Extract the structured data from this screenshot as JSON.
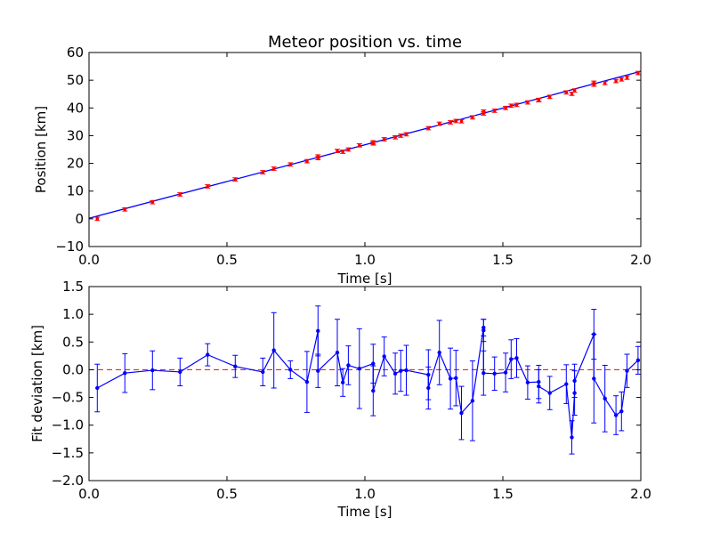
{
  "chart_data": [
    {
      "type": "scatter",
      "title": "Meteor position vs. time",
      "xlabel": "Time [s]",
      "ylabel": "Position [km]",
      "xlim": [
        0.0,
        2.0
      ],
      "ylim": [
        -10,
        60
      ],
      "xticks": [
        "0.0",
        "0.5",
        "1.0",
        "1.5",
        "2.0"
      ],
      "yticks": [
        "−10",
        "0",
        "10",
        "20",
        "30",
        "40",
        "50",
        "60"
      ],
      "grid": false,
      "colors": {
        "data": "#ff0000",
        "fit": "#0000ff"
      },
      "fit_line": {
        "x": [
          0.0,
          2.0
        ],
        "y": [
          0.2,
          53.2
        ]
      },
      "series": [
        {
          "x": [
            0.03,
            0.13,
            0.23,
            0.33,
            0.43,
            0.53,
            0.63,
            0.67,
            0.73,
            0.79,
            0.83,
            0.83,
            0.9,
            0.92,
            0.94,
            0.98,
            1.03,
            1.03,
            1.07,
            1.11,
            1.13,
            1.15,
            1.23,
            1.27,
            1.31,
            1.33,
            1.35,
            1.39,
            1.43,
            1.43,
            1.47,
            1.51,
            1.53,
            1.55,
            1.59,
            1.63,
            1.63,
            1.67,
            1.73,
            1.75,
            1.76,
            1.83,
            1.83,
            1.87,
            1.91,
            1.93,
            1.95,
            1.99
          ],
          "y": [
            0.0,
            3.4,
            6.0,
            8.8,
            11.7,
            14.2,
            16.8,
            18.1,
            19.6,
            20.8,
            22.5,
            21.9,
            24.5,
            24.2,
            25.0,
            26.5,
            27.2,
            27.6,
            28.7,
            29.4,
            30.0,
            30.5,
            32.7,
            34.3,
            34.8,
            35.3,
            35.2,
            36.6,
            38.7,
            38.0,
            39.0,
            40.0,
            40.8,
            41.1,
            42.0,
            42.9,
            42.8,
            44.0,
            45.6,
            45.1,
            46.3,
            49.1,
            48.4,
            49.0,
            49.7,
            50.3,
            50.9,
            52.6
          ],
          "yerr": 0.6
        }
      ]
    },
    {
      "type": "line",
      "title": "",
      "xlabel": "Time [s]",
      "ylabel": "Fit deviation [km]",
      "xlim": [
        0.0,
        2.0
      ],
      "ylim": [
        -2.0,
        1.5
      ],
      "xticks": [
        "0.0",
        "0.5",
        "1.0",
        "1.5",
        "2.0"
      ],
      "yticks": [
        "−2.0",
        "−1.5",
        "−1.0",
        "−0.5",
        "0.0",
        "0.5",
        "1.0",
        "1.5"
      ],
      "grid": false,
      "colors": {
        "line": "#0000ff",
        "reference": "#ff0000"
      },
      "reference_line": {
        "y": 0.0,
        "style": "dashed"
      },
      "series": [
        {
          "x": [
            0.03,
            0.13,
            0.23,
            0.33,
            0.43,
            0.53,
            0.63,
            0.67,
            0.73,
            0.79,
            0.83,
            0.83,
            0.9,
            0.92,
            0.94,
            0.98,
            1.03,
            1.03,
            1.07,
            1.11,
            1.13,
            1.15,
            1.23,
            1.23,
            1.27,
            1.31,
            1.33,
            1.35,
            1.39,
            1.43,
            1.43,
            1.43,
            1.47,
            1.51,
            1.53,
            1.55,
            1.59,
            1.63,
            1.63,
            1.67,
            1.73,
            1.75,
            1.76,
            1.76,
            1.83,
            1.83,
            1.87,
            1.91,
            1.93,
            1.95,
            1.99
          ],
          "y": [
            -0.33,
            -0.06,
            -0.01,
            -0.04,
            0.27,
            0.06,
            -0.04,
            0.35,
            0.0,
            -0.22,
            0.7,
            -0.02,
            0.31,
            -0.23,
            0.08,
            0.02,
            0.11,
            -0.38,
            0.24,
            -0.07,
            -0.02,
            -0.01,
            -0.09,
            -0.33,
            0.31,
            -0.16,
            -0.15,
            -0.78,
            -0.56,
            0.76,
            0.71,
            -0.06,
            -0.07,
            -0.05,
            0.19,
            0.21,
            -0.23,
            -0.22,
            -0.3,
            -0.42,
            -0.26,
            -1.22,
            -0.42,
            -0.2,
            0.64,
            -0.16,
            -0.52,
            -0.82,
            -0.75,
            -0.02,
            0.17
          ],
          "yerr": [
            0.43,
            0.35,
            0.35,
            0.25,
            0.2,
            0.2,
            0.25,
            0.68,
            0.16,
            0.55,
            0.45,
            0.3,
            0.6,
            0.25,
            0.35,
            0.72,
            0.35,
            0.45,
            0.35,
            0.37,
            0.37,
            0.45,
            0.45,
            0.38,
            0.58,
            0.55,
            0.5,
            0.48,
            0.72,
            0.15,
            0.2,
            0.4,
            0.3,
            0.35,
            0.35,
            0.35,
            0.3,
            0.3,
            0.3,
            0.3,
            0.35,
            0.3,
            0.4,
            0.3,
            0.45,
            0.8,
            0.6,
            0.35,
            0.35,
            0.3,
            0.25
          ]
        }
      ]
    }
  ]
}
